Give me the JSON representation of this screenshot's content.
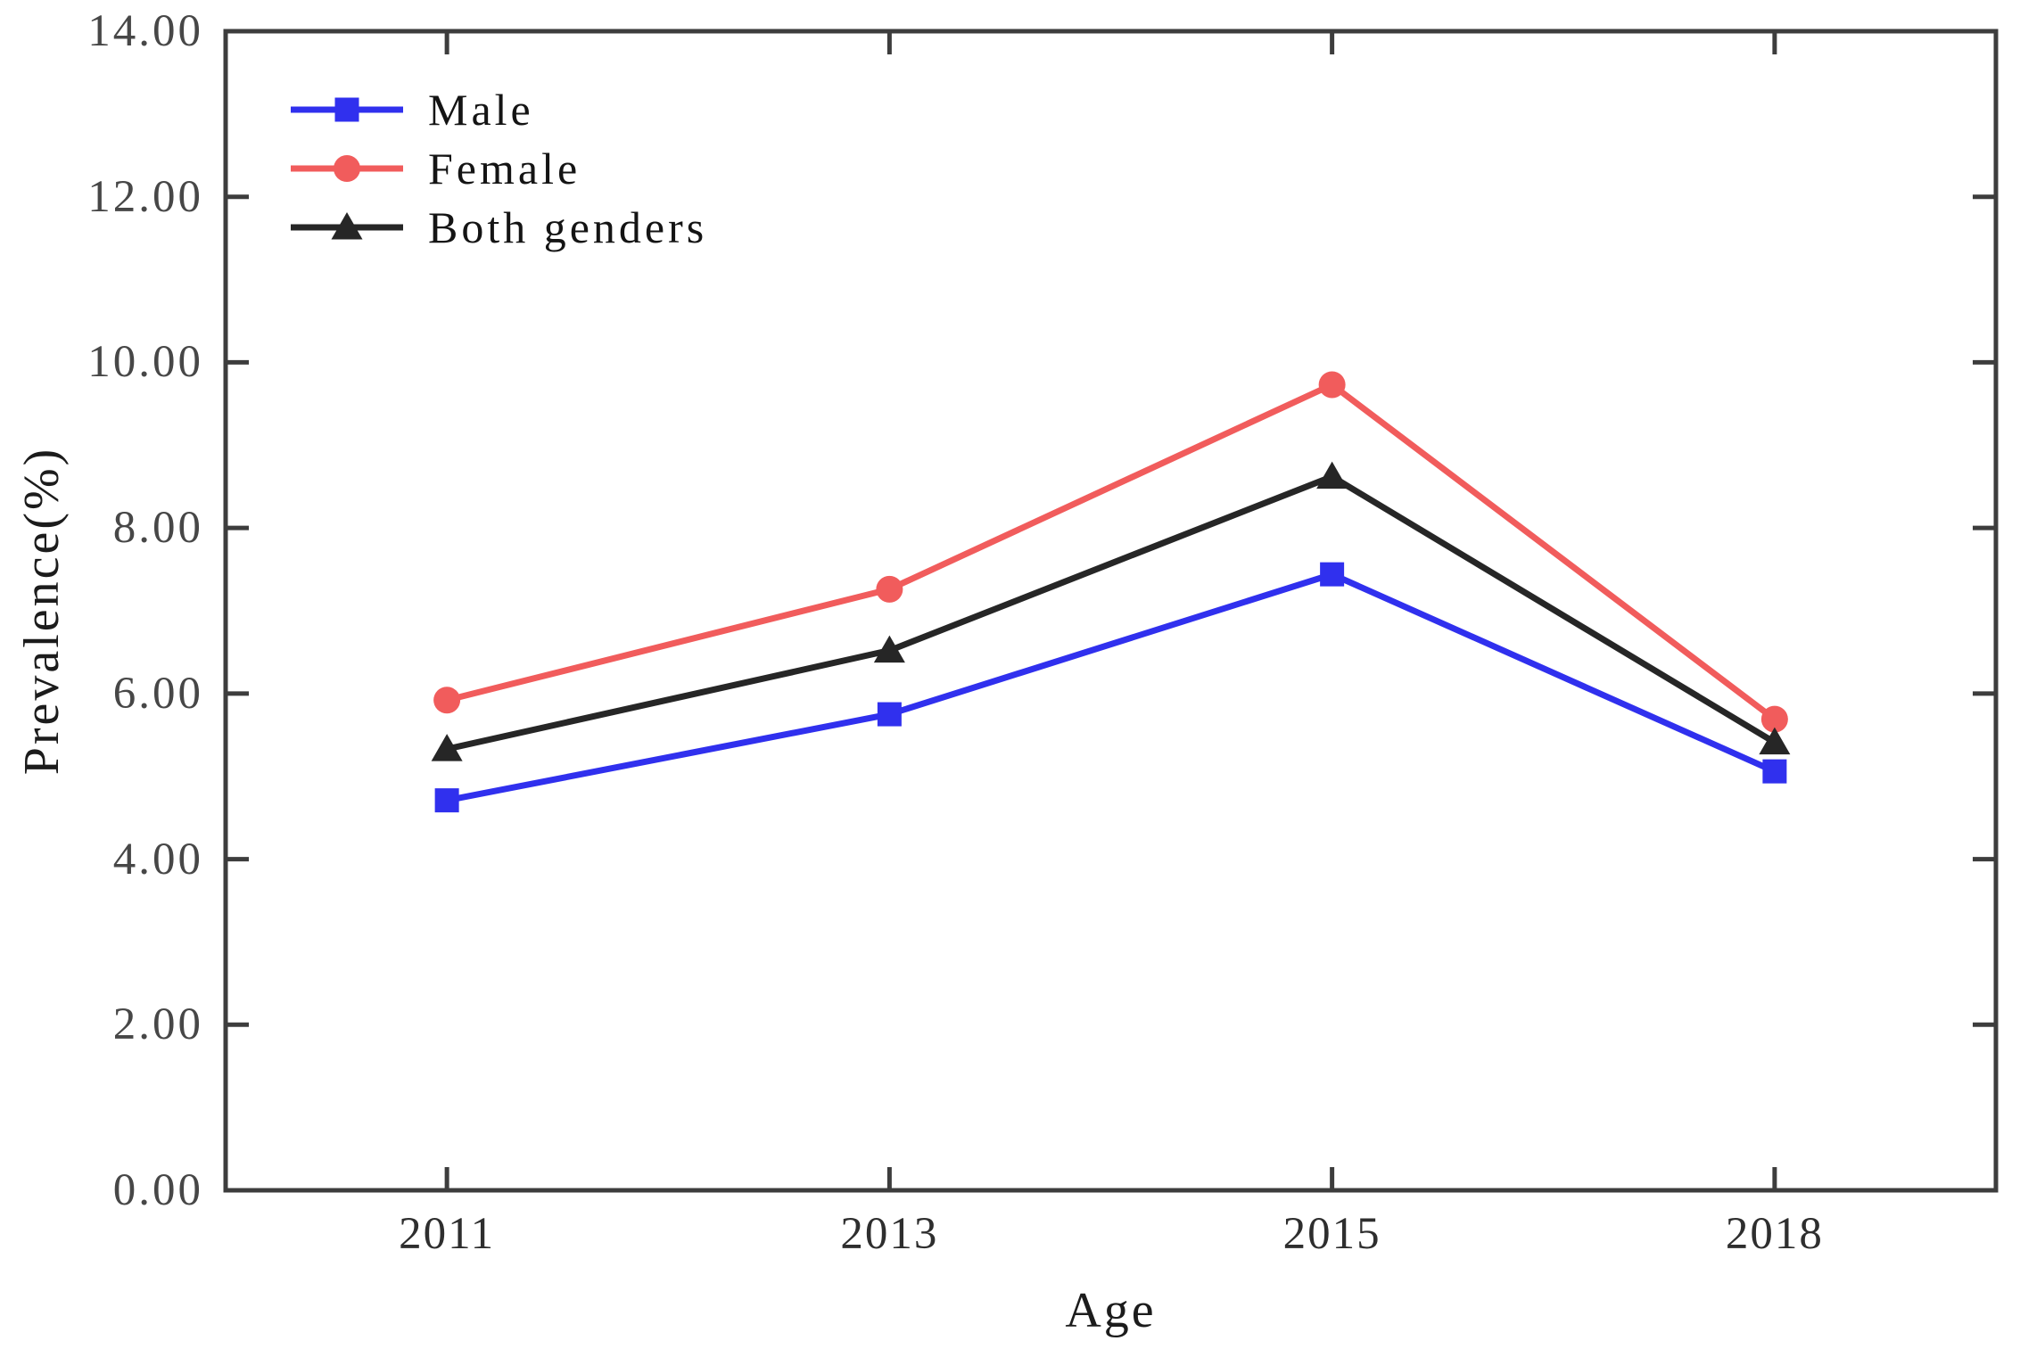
{
  "chart_data": {
    "type": "line",
    "title": "",
    "xlabel": "Age",
    "ylabel": "Prevalence(%)",
    "categories": [
      "2011",
      "2013",
      "2015",
      "2018"
    ],
    "series": [
      {
        "name": "Male",
        "color": "#3030ee",
        "marker": "square",
        "values": [
          4.71,
          5.75,
          7.44,
          5.06
        ]
      },
      {
        "name": "Female",
        "color": "#f15c5c",
        "marker": "circle",
        "values": [
          5.92,
          7.26,
          9.73,
          5.69
        ]
      },
      {
        "name": "Both genders",
        "color": "#262626",
        "marker": "triangle",
        "values": [
          5.33,
          6.52,
          8.62,
          5.41
        ]
      }
    ],
    "ylim": [
      0,
      14
    ],
    "ytick_step": 2,
    "y_tick_labels": [
      "0.00",
      "2.00",
      "4.00",
      "6.00",
      "8.00",
      "10.00",
      "12.00",
      "14.00"
    ],
    "x_tick_labels": [
      "2011",
      "2013",
      "2015",
      "2018"
    ],
    "grid": false,
    "legend_position": "top-left-inside",
    "axis_color": "#3d3d3d",
    "tick_label_color": "#474747",
    "line_width": 7,
    "axis_line_width": 5,
    "tick_length": 26
  }
}
